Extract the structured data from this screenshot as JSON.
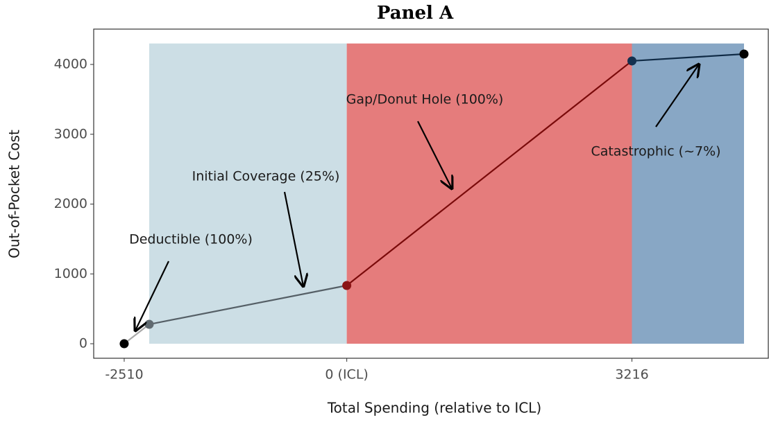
{
  "chart_data": {
    "type": "line",
    "title": "Panel A",
    "x_label": "Total Spending (relative to ICL)",
    "y_label": "Out-of-Pocket Cost",
    "x": [
      -2510,
      -2228,
      0,
      3216,
      4480
    ],
    "values": [
      0,
      278,
      834,
      4050,
      4149
    ],
    "segment_colors": [
      "#a9a9a9",
      "#555f66",
      "#7a0a0a",
      "#0f2a45"
    ],
    "point_colors": [
      "#000000",
      "#606a70",
      "#8b1515",
      "#14304f",
      "#000000"
    ],
    "regions": [
      {
        "from": -2228,
        "to": 0,
        "ymin": 0,
        "ymax": 4300,
        "color": "#ccdee5"
      },
      {
        "from": 0,
        "to": 3216,
        "ymin": 0,
        "ymax": 4300,
        "color": "#e57c7c"
      },
      {
        "from": 3216,
        "to": 4480,
        "ymin": 0,
        "ymax": 4300,
        "color": "#88a7c5"
      }
    ],
    "annotations": [
      "Deductible (100%)",
      "Initial Coverage (25%)",
      "Gap/Donut Hole (100%)",
      "Catastrophic (~7%)"
    ],
    "xlim": [
      -2854,
      4754
    ],
    "ylim": [
      -208,
      4506
    ],
    "xticks": [
      -2510,
      {
        "value": 0,
        "label": "0 (ICL)"
      },
      3216
    ],
    "yticks": [
      0,
      1000,
      2000,
      3000,
      4000
    ],
    "grid": false
  }
}
